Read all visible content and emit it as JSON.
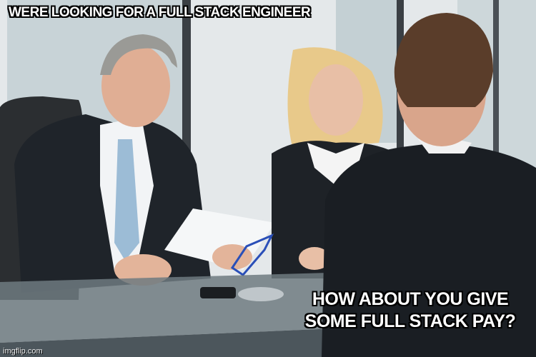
{
  "meme": {
    "top_caption": "WERE LOOKING FOR A FULL STACK ENGINEER",
    "bottom_caption": "HOW ABOUT YOU GIVE SOME FULL STACK PAY?",
    "watermark": "imgflip.com"
  },
  "colors": {
    "suit": "#1d2228",
    "wall": "#e6eaec",
    "window": "#b8c6cc",
    "skin": "#e3b49a",
    "tie": "#9cbcd6",
    "blonde_hair": "#e8c98a",
    "grey_hair": "#9a9a96",
    "brown_hair": "#5a3d2a"
  }
}
